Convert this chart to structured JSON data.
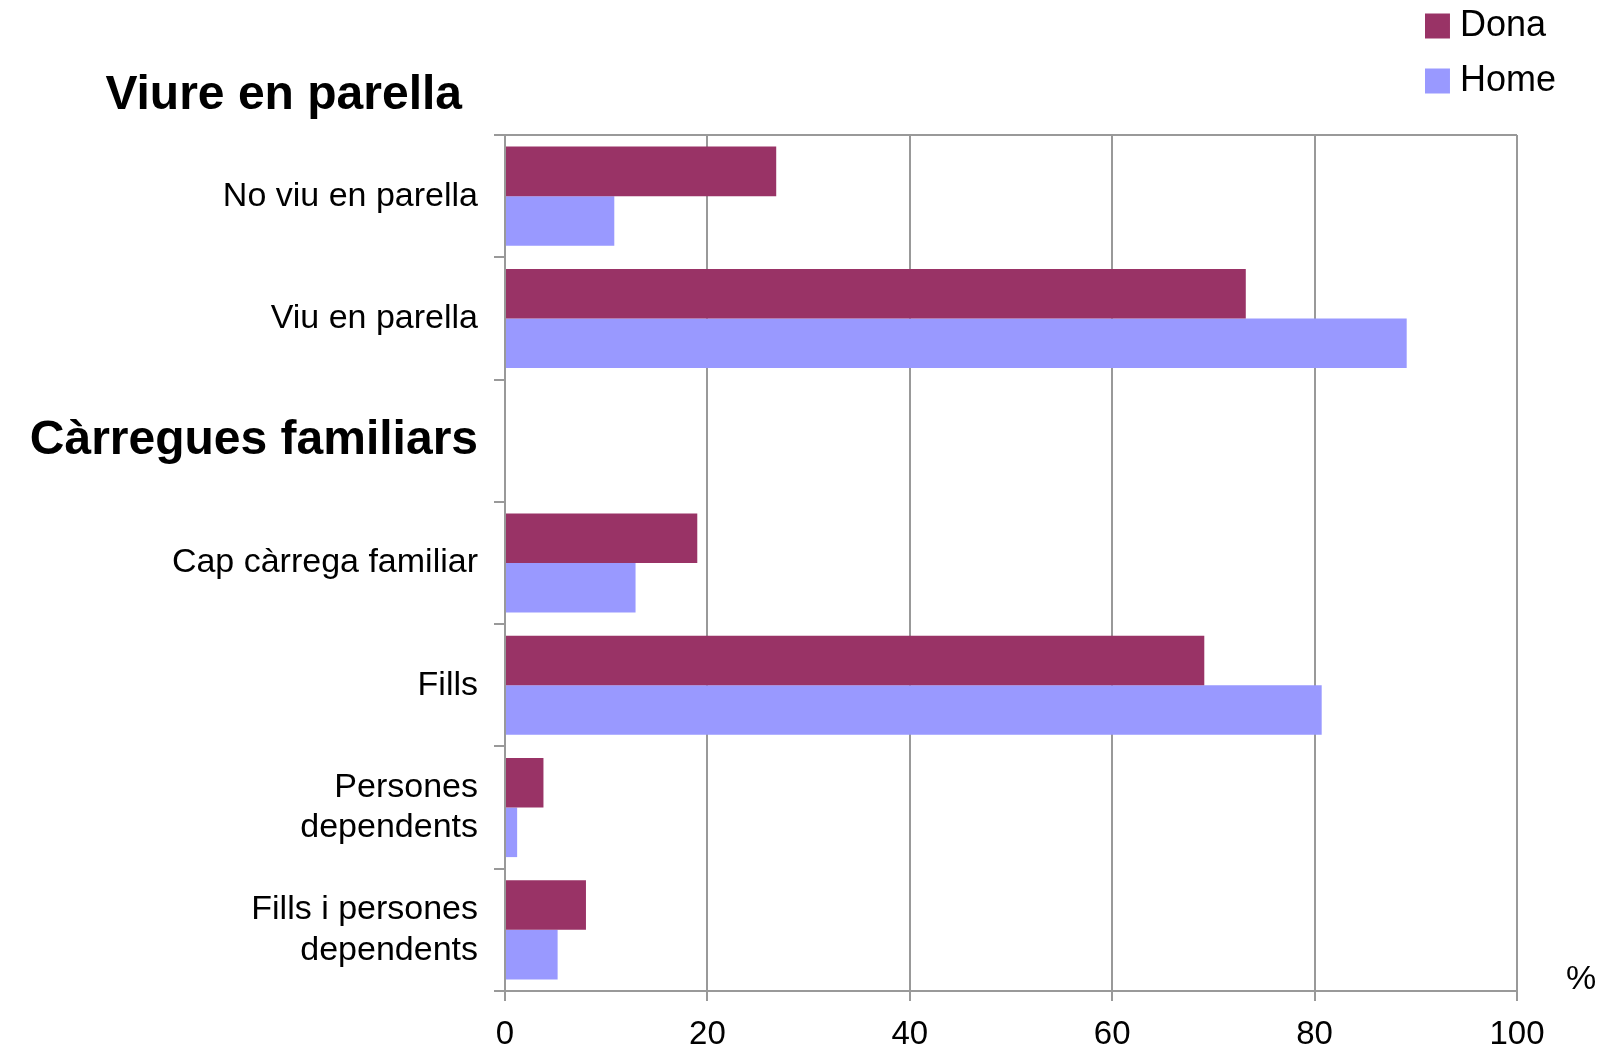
{
  "chart_data": {
    "type": "bar",
    "orientation": "horizontal",
    "title": "Viure en parella",
    "xlabel": "%",
    "categories": [
      "No viu en parella",
      "Viu en parella",
      "Càrregues familiars",
      "Cap càrrega familiar",
      "Fills",
      "Persones dependents",
      "Fills i persones dependents"
    ],
    "series": [
      {
        "name": "Dona",
        "color": "#993366",
        "values": [
          26.8,
          73.2,
          null,
          19.0,
          69.1,
          3.8,
          8.0
        ]
      },
      {
        "name": "Home",
        "color": "#9999ff",
        "values": [
          10.8,
          89.1,
          null,
          12.9,
          80.7,
          1.2,
          5.2
        ]
      }
    ],
    "xlim": [
      0,
      100
    ],
    "xticks": [
      0,
      20,
      40,
      60,
      80,
      100
    ],
    "grid": "x",
    "legend": "top right"
  }
}
